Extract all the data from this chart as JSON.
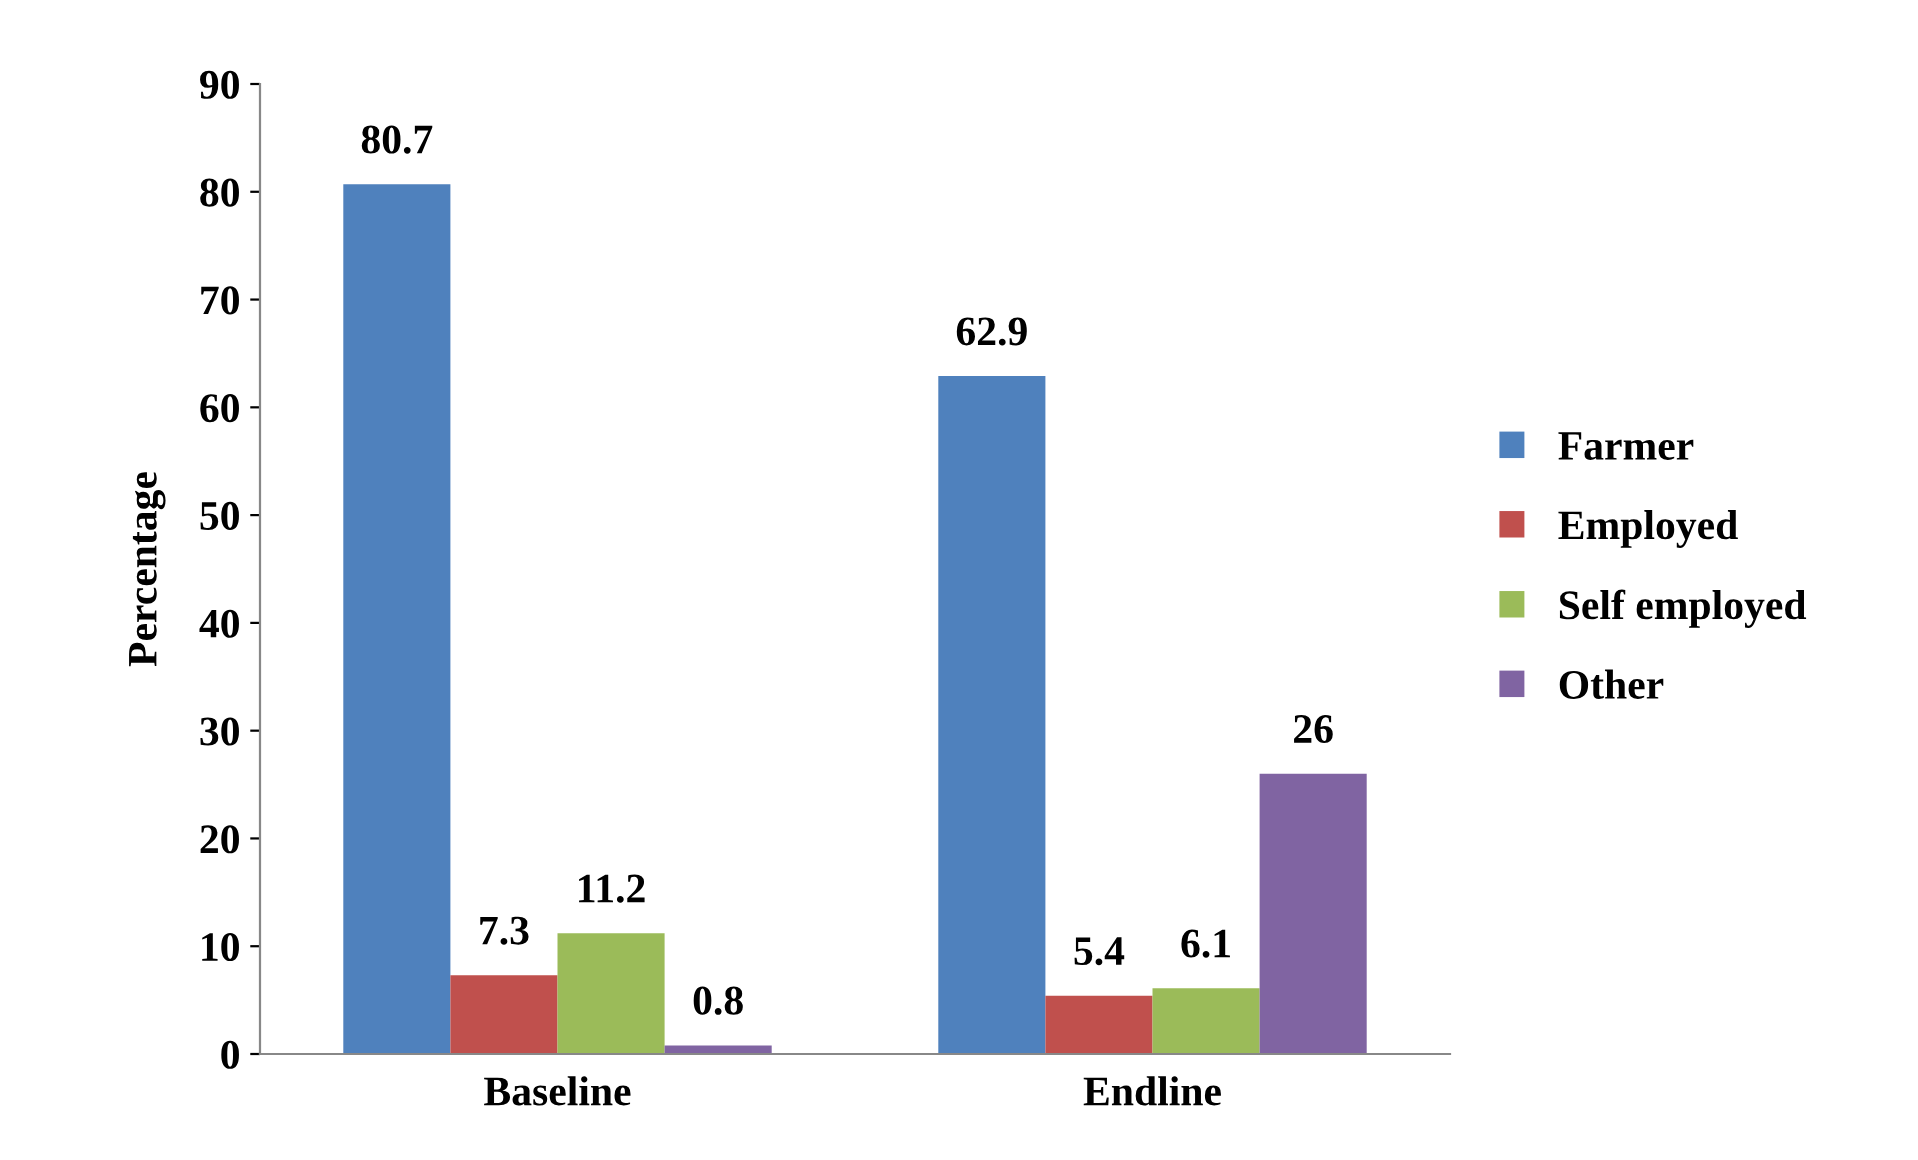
{
  "chart_data": {
    "type": "bar",
    "ylabel": "Percentage",
    "categories": [
      "Baseline",
      "Endline"
    ],
    "series": [
      {
        "name": "Farmer",
        "color": "#4f81bd",
        "values": [
          80.7,
          62.9
        ]
      },
      {
        "name": "Employed",
        "color": "#c0504d",
        "values": [
          7.3,
          5.4
        ]
      },
      {
        "name": "Self employed",
        "color": "#9bbb59",
        "values": [
          11.2,
          6.1
        ]
      },
      {
        "name": "Other",
        "color": "#8064a2",
        "values": [
          0.8,
          26
        ]
      }
    ],
    "ylim": [
      0,
      90
    ],
    "yticks": [
      0,
      10,
      20,
      30,
      40,
      50,
      60,
      70,
      80,
      90
    ],
    "data_labels": true,
    "grid": false,
    "legend": "right"
  }
}
